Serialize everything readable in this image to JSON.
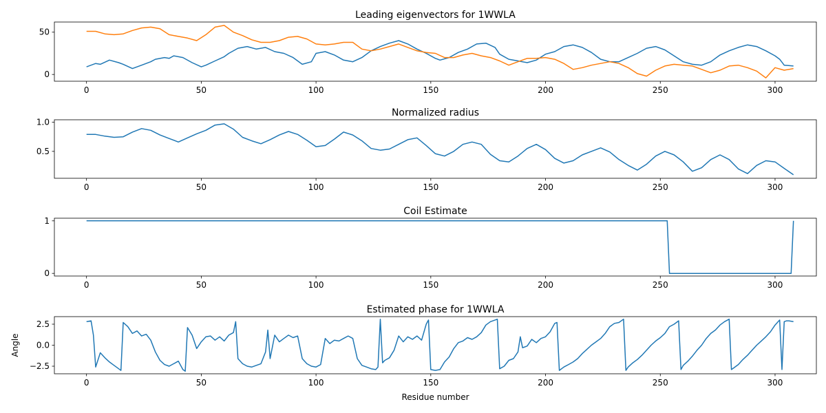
{
  "chart_data": [
    {
      "type": "line",
      "title": "Leading eigenvectors for 1WWLA",
      "xlabel": "",
      "ylabel": "",
      "xlim": [
        -14,
        318
      ],
      "ylim": [
        -8,
        62
      ],
      "xticks": [
        0,
        50,
        100,
        150,
        200,
        250,
        300
      ],
      "yticks": [
        0,
        50
      ],
      "grid": false,
      "series": [
        {
          "color": "#1f77b4",
          "x": [
            0,
            4,
            6,
            10,
            14,
            16,
            20,
            24,
            28,
            30,
            34,
            36,
            38,
            42,
            46,
            50,
            52,
            56,
            60,
            62,
            66,
            70,
            74,
            78,
            82,
            86,
            90,
            94,
            98,
            100,
            104,
            108,
            112,
            116,
            120,
            124,
            128,
            132,
            136,
            140,
            144,
            148,
            152,
            154,
            158,
            162,
            166,
            170,
            174,
            178,
            180,
            184,
            188,
            192,
            196,
            200,
            204,
            208,
            212,
            216,
            220,
            224,
            228,
            232,
            236,
            240,
            244,
            248,
            252,
            256,
            260,
            264,
            268,
            272,
            276,
            280,
            284,
            288,
            292,
            296,
            300,
            302,
            304,
            308
          ],
          "values": [
            9,
            13,
            12,
            17,
            14,
            12,
            7,
            11,
            15,
            18,
            20,
            19,
            22,
            20,
            14,
            9,
            11,
            16,
            21,
            25,
            31,
            33,
            30,
            32,
            27,
            25,
            20,
            12,
            15,
            25,
            27,
            23,
            17,
            15,
            20,
            28,
            33,
            37,
            40,
            36,
            30,
            25,
            19,
            17,
            20,
            26,
            30,
            36,
            37,
            32,
            24,
            18,
            16,
            14,
            17,
            24,
            27,
            33,
            35,
            32,
            26,
            18,
            15,
            15,
            20,
            25,
            31,
            33,
            29,
            22,
            15,
            12,
            11,
            15,
            23,
            28,
            32,
            35,
            33,
            28,
            22,
            18,
            11,
            10
          ]
        },
        {
          "color": "#ff7f0e",
          "x": [
            0,
            4,
            8,
            12,
            16,
            20,
            24,
            28,
            32,
            36,
            40,
            44,
            48,
            52,
            56,
            60,
            64,
            68,
            72,
            76,
            80,
            84,
            88,
            92,
            96,
            100,
            104,
            108,
            112,
            116,
            120,
            124,
            128,
            132,
            136,
            140,
            144,
            148,
            152,
            156,
            160,
            164,
            168,
            172,
            176,
            180,
            184,
            188,
            192,
            196,
            200,
            204,
            208,
            212,
            216,
            220,
            224,
            228,
            232,
            236,
            240,
            244,
            248,
            252,
            256,
            260,
            264,
            268,
            272,
            276,
            280,
            284,
            288,
            292,
            296,
            300,
            304,
            308
          ],
          "values": [
            51,
            51,
            48,
            47,
            48,
            52,
            55,
            56,
            54,
            47,
            45,
            43,
            40,
            47,
            56,
            58,
            50,
            46,
            41,
            38,
            38,
            40,
            44,
            45,
            42,
            36,
            35,
            36,
            38,
            38,
            30,
            28,
            30,
            33,
            36,
            32,
            28,
            26,
            25,
            20,
            20,
            23,
            25,
            22,
            20,
            16,
            11,
            15,
            19,
            19,
            20,
            18,
            13,
            6,
            8,
            11,
            13,
            15,
            13,
            8,
            1,
            -2,
            5,
            10,
            12,
            11,
            10,
            6,
            2,
            5,
            10,
            11,
            8,
            4,
            -4,
            8,
            5,
            7
          ]
        }
      ]
    },
    {
      "type": "line",
      "title": "Normalized radius",
      "xlabel": "",
      "ylabel": "",
      "xlim": [
        -14,
        318
      ],
      "ylim": [
        0.04,
        1.04
      ],
      "xticks": [
        0,
        50,
        100,
        150,
        200,
        250,
        300
      ],
      "yticks": [
        0.5,
        1.0
      ],
      "ytick_labels": [
        "0.5",
        "1.0"
      ],
      "grid": false,
      "series": [
        {
          "color": "#1f77b4",
          "x": [
            0,
            4,
            8,
            12,
            16,
            20,
            24,
            28,
            32,
            36,
            40,
            44,
            48,
            52,
            56,
            60,
            64,
            68,
            72,
            76,
            80,
            84,
            88,
            92,
            96,
            100,
            104,
            108,
            112,
            116,
            120,
            124,
            128,
            132,
            136,
            140,
            144,
            148,
            152,
            156,
            160,
            164,
            168,
            172,
            176,
            180,
            184,
            188,
            192,
            196,
            200,
            204,
            208,
            212,
            216,
            220,
            224,
            228,
            232,
            236,
            240,
            244,
            248,
            252,
            256,
            260,
            264,
            268,
            272,
            276,
            280,
            284,
            288,
            292,
            296,
            300,
            304,
            308
          ],
          "values": [
            0.79,
            0.79,
            0.76,
            0.74,
            0.75,
            0.83,
            0.89,
            0.86,
            0.78,
            0.72,
            0.66,
            0.73,
            0.8,
            0.86,
            0.95,
            0.97,
            0.88,
            0.74,
            0.68,
            0.63,
            0.7,
            0.78,
            0.84,
            0.79,
            0.69,
            0.58,
            0.6,
            0.71,
            0.83,
            0.78,
            0.68,
            0.55,
            0.52,
            0.54,
            0.62,
            0.7,
            0.73,
            0.6,
            0.46,
            0.42,
            0.5,
            0.62,
            0.66,
            0.62,
            0.45,
            0.34,
            0.32,
            0.42,
            0.55,
            0.62,
            0.53,
            0.38,
            0.3,
            0.34,
            0.44,
            0.5,
            0.56,
            0.49,
            0.36,
            0.26,
            0.18,
            0.28,
            0.42,
            0.5,
            0.44,
            0.32,
            0.16,
            0.22,
            0.36,
            0.44,
            0.36,
            0.2,
            0.12,
            0.26,
            0.34,
            0.32,
            0.21,
            0.1
          ]
        }
      ]
    },
    {
      "type": "line",
      "title": "Coil Estimate",
      "xlabel": "",
      "ylabel": "",
      "xlim": [
        -14,
        318
      ],
      "ylim": [
        -0.05,
        1.05
      ],
      "xticks": [
        0,
        50,
        100,
        150,
        200,
        250,
        300
      ],
      "yticks": [
        0,
        1
      ],
      "grid": false,
      "series": [
        {
          "color": "#1f77b4",
          "x": [
            0,
            253,
            254,
            307,
            308
          ],
          "values": [
            1,
            1,
            0,
            0,
            1
          ]
        }
      ]
    },
    {
      "type": "line",
      "title": "Estimated phase for 1WWLA",
      "xlabel": "Residue number",
      "ylabel": "Angle",
      "xlim": [
        -14,
        318
      ],
      "ylim": [
        -3.4,
        3.4
      ],
      "xticks": [
        0,
        50,
        100,
        150,
        200,
        250,
        300
      ],
      "yticks": [
        -2.5,
        0.0,
        2.5
      ],
      "ytick_labels": [
        "−2.5",
        "0.0",
        "2.5"
      ],
      "grid": false,
      "series": [
        {
          "color": "#1f77b4",
          "x": [
            0,
            2,
            3,
            4,
            6,
            8,
            10,
            12,
            14,
            15,
            16,
            18,
            20,
            22,
            24,
            26,
            28,
            30,
            32,
            34,
            36,
            38,
            40,
            42,
            43,
            44,
            46,
            48,
            50,
            52,
            54,
            56,
            58,
            60,
            62,
            64,
            65,
            66,
            68,
            70,
            72,
            74,
            76,
            78,
            79,
            80,
            82,
            84,
            86,
            88,
            90,
            92,
            94,
            96,
            98,
            100,
            102,
            104,
            106,
            108,
            110,
            112,
            114,
            116,
            118,
            120,
            122,
            124,
            126,
            127,
            128,
            129,
            130,
            132,
            134,
            136,
            138,
            140,
            142,
            144,
            146,
            148,
            149,
            150,
            152,
            154,
            156,
            158,
            160,
            162,
            164,
            166,
            168,
            170,
            172,
            174,
            176,
            178,
            179,
            180,
            182,
            184,
            186,
            188,
            189,
            190,
            192,
            194,
            196,
            198,
            200,
            202,
            204,
            205,
            206,
            208,
            210,
            212,
            214,
            216,
            218,
            220,
            222,
            224,
            226,
            228,
            230,
            232,
            234,
            235,
            236,
            238,
            240,
            242,
            244,
            246,
            248,
            250,
            252,
            254,
            256,
            258,
            259,
            260,
            262,
            264,
            266,
            268,
            270,
            272,
            274,
            276,
            278,
            280,
            281,
            282,
            284,
            286,
            288,
            290,
            292,
            294,
            296,
            298,
            300,
            302,
            303,
            304,
            305,
            306,
            308
          ],
          "values": [
            2.8,
            2.9,
            1.2,
            -2.6,
            -0.9,
            -1.5,
            -2.0,
            -2.4,
            -2.8,
            -3.0,
            2.7,
            2.2,
            1.4,
            1.7,
            1.1,
            1.3,
            0.6,
            -0.8,
            -1.8,
            -2.3,
            -2.5,
            -2.2,
            -1.9,
            -2.9,
            -3.1,
            2.1,
            1.2,
            -0.4,
            0.4,
            1.0,
            1.1,
            0.6,
            1.0,
            0.5,
            1.2,
            1.5,
            2.8,
            -1.6,
            -2.2,
            -2.5,
            -2.6,
            -2.4,
            -2.2,
            -0.8,
            1.8,
            -1.6,
            1.2,
            0.4,
            0.8,
            1.2,
            0.9,
            1.1,
            -1.6,
            -2.2,
            -2.5,
            -2.6,
            -2.3,
            0.8,
            0.2,
            0.6,
            0.5,
            0.8,
            1.1,
            0.8,
            -1.6,
            -2.4,
            -2.6,
            -2.8,
            -2.9,
            -2.6,
            3.1,
            -2.1,
            -1.8,
            -1.5,
            -0.6,
            1.1,
            0.4,
            1.0,
            0.7,
            1.1,
            0.6,
            2.5,
            3.0,
            -2.9,
            -3.0,
            -2.9,
            -2.0,
            -1.4,
            -0.4,
            0.3,
            0.5,
            0.9,
            0.7,
            1.0,
            1.5,
            2.4,
            2.8,
            3.0,
            3.1,
            -2.8,
            -2.5,
            -1.8,
            -1.6,
            -0.8,
            1.0,
            -0.3,
            -0.1,
            0.7,
            0.3,
            0.8,
            1.0,
            1.6,
            2.6,
            2.7,
            -3.0,
            -2.6,
            -2.3,
            -2.0,
            -1.6,
            -1.0,
            -0.5,
            0.0,
            0.4,
            0.8,
            1.4,
            2.2,
            2.6,
            2.7,
            3.1,
            -3.0,
            -2.6,
            -2.1,
            -1.7,
            -1.2,
            -0.6,
            0.0,
            0.5,
            0.9,
            1.4,
            2.2,
            2.5,
            2.9,
            -2.9,
            -2.4,
            -1.9,
            -1.3,
            -0.6,
            0.0,
            0.8,
            1.4,
            1.8,
            2.4,
            2.8,
            3.1,
            -2.9,
            -2.7,
            -2.3,
            -1.7,
            -1.2,
            -0.6,
            0.0,
            0.5,
            1.0,
            1.6,
            2.4,
            3.0,
            -2.9,
            2.8,
            2.9,
            2.9,
            2.8
          ]
        }
      ]
    }
  ]
}
